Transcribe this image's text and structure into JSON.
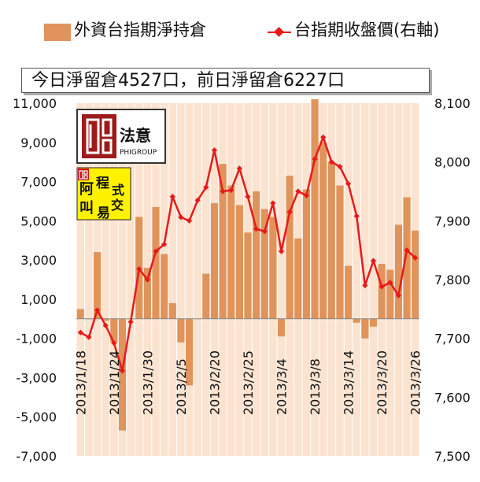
{
  "legend": {
    "bar_label": "外資台指期淨持倉",
    "line_label": "台指期收盤價(右軸)"
  },
  "note": "今日淨留倉4527口，前日淨留倉6227口",
  "logo": {
    "main": "法意",
    "sub": "PHIGROUP",
    "seal_chars": [
      "阿",
      "叫",
      "程",
      "式",
      "交",
      "易"
    ]
  },
  "colors": {
    "bar": "#E0935A",
    "line": "#E81919",
    "plot_bg": "#FBE3D0",
    "grid": "#ffffff"
  },
  "chart_data": {
    "type": "bar+line",
    "left_axis": {
      "min": -7000,
      "max": 11000,
      "ticks": [
        11000,
        9000,
        7000,
        5000,
        3000,
        1000,
        -1000,
        -3000,
        -5000,
        -7000
      ],
      "tick_labels": [
        "11,000",
        "9,000",
        "7,000",
        "5,000",
        "3,000",
        "1,000",
        "-1,000",
        "-3,000",
        "-5,000",
        "-7,000"
      ]
    },
    "right_axis": {
      "min": 7500,
      "max": 8100,
      "ticks": [
        8100,
        8000,
        7900,
        7800,
        7700,
        7600,
        7500
      ],
      "tick_labels": [
        "8,100",
        "8,000",
        "7,900",
        "7,800",
        "7,700",
        "7,600",
        "7,500"
      ]
    },
    "x_tick_labels": [
      "2013/1/18",
      "2013/1/24",
      "2013/1/30",
      "2013/2/5",
      "2013/2/20",
      "2013/2/25",
      "2013/3/4",
      "2013/3/8",
      "2013/3/14",
      "2013/3/20",
      "2013/3/26"
    ],
    "x_tick_index": [
      0,
      4,
      8,
      12,
      16,
      20,
      24,
      28,
      32,
      36,
      40
    ],
    "series": [
      {
        "name": "外資台指期淨持倉",
        "axis": "left",
        "values": [
          500,
          0,
          3400,
          -100,
          -1200,
          -5700,
          0,
          5200,
          2600,
          5700,
          3300,
          800,
          -1200,
          -3400,
          0,
          2300,
          5900,
          7900,
          6800,
          5800,
          4400,
          6500,
          5600,
          5200,
          -900,
          7300,
          4100,
          6600,
          11200,
          9000,
          8000,
          6800,
          2700,
          -200,
          -1000,
          -400,
          2800,
          2500,
          4800,
          6200,
          4500
        ]
      },
      {
        "name": "台指期收盤價(右軸)",
        "axis": "right",
        "values": [
          7710,
          7702,
          7748,
          7722,
          7692,
          7645,
          7728,
          7818,
          7800,
          7848,
          7860,
          7941,
          7906,
          7900,
          7935,
          7957,
          8020,
          7950,
          7952,
          7989,
          7941,
          7886,
          7882,
          7930,
          7848,
          7915,
          7950,
          7943,
          8005,
          8042,
          8000,
          7992,
          7963,
          7908,
          7790,
          7832,
          7788,
          7795,
          7773,
          7850,
          7837
        ]
      }
    ]
  }
}
